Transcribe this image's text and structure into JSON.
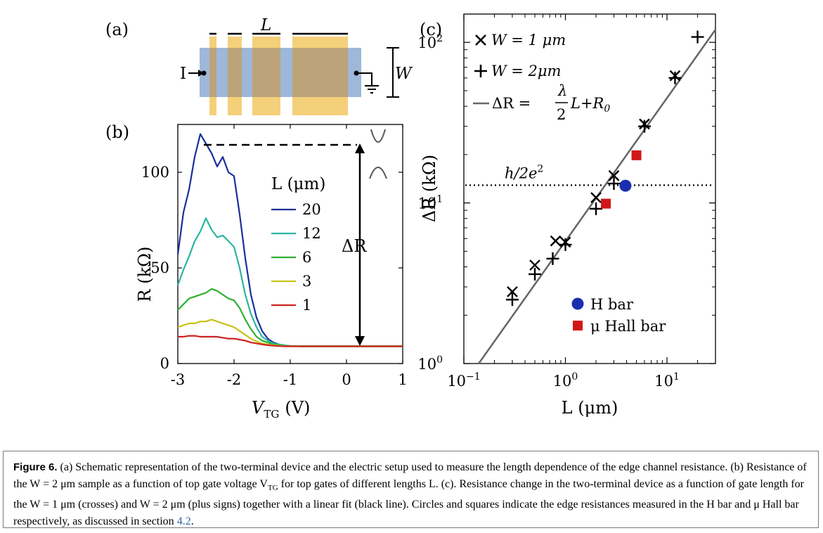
{
  "panel_a": {
    "label": "(a)",
    "current_label": "I",
    "length_label": "L",
    "width_label": "W",
    "colors": {
      "channel": "#9db8d8",
      "gate": "#f5d07a",
      "gate_overlap": "#bca37a"
    }
  },
  "panel_b": {
    "label": "(b)",
    "delta_label": "ΔR",
    "legend_title": "L (μm)",
    "xlabel": "V",
    "xlabel_sub": "TG",
    "xlabel_unit": "(V)",
    "ylabel": "R (kΩ)",
    "xticks": [
      "-3",
      "-2",
      "-1",
      "0",
      "1"
    ],
    "yticks": [
      "0",
      "50",
      "100"
    ]
  },
  "panel_c": {
    "label": "(c)",
    "legend": {
      "w1": "W = 1 μm",
      "w2": "W = 2μm",
      "fit_prefix": "ΔR =",
      "fit_frac_num": "λ",
      "fit_frac_den": "2",
      "fit_suffix": "L+R",
      "fit_sub": "0",
      "h_bar": "H bar",
      "mu_hall": "μ Hall bar"
    },
    "h2e2": "h/2e",
    "h2e2_sup": "2",
    "xlabel": "L (μm)",
    "ylabel": "ΔR (kΩ)",
    "xticks": [
      {
        "base": "10",
        "exp": "−1"
      },
      {
        "base": "10",
        "exp": "0"
      },
      {
        "base": "10",
        "exp": "1"
      }
    ],
    "yticks": [
      {
        "base": "10",
        "exp": "0"
      },
      {
        "base": "10",
        "exp": "1"
      },
      {
        "base": "10",
        "exp": "2"
      }
    ]
  },
  "chart_data": [
    {
      "type": "line",
      "title": "",
      "xlabel": "V_TG (V)",
      "ylabel": "R (kΩ)",
      "xlim": [
        -3,
        1
      ],
      "ylim": [
        0,
        125
      ],
      "grid": false,
      "legend_position": "center-right",
      "legend_title": "L (μm)",
      "x": [
        -3.0,
        -2.9,
        -2.8,
        -2.7,
        -2.6,
        -2.5,
        -2.4,
        -2.3,
        -2.2,
        -2.1,
        -2.0,
        -1.9,
        -1.8,
        -1.7,
        -1.6,
        -1.5,
        -1.4,
        -1.3,
        -1.2,
        -1.1,
        -1.0,
        -0.8,
        -0.5,
        0.0,
        0.5,
        1.0
      ],
      "series": [
        {
          "name": "20",
          "color": "#1a2f9c",
          "values": [
            57,
            79,
            91,
            108,
            120,
            115,
            110,
            103,
            108,
            100,
            98,
            78,
            55,
            36,
            24,
            17,
            13,
            11,
            10,
            9.5,
            9.2,
            9,
            9,
            9,
            9,
            9
          ]
        },
        {
          "name": "12",
          "color": "#2ab5a0",
          "values": [
            41,
            49,
            56,
            64,
            69,
            76,
            70,
            66,
            67,
            64,
            61,
            50,
            36,
            26,
            19,
            14,
            12,
            10.5,
            10,
            9.5,
            9.2,
            9,
            9,
            9,
            9,
            9
          ]
        },
        {
          "name": "6",
          "color": "#2eaf2e",
          "values": [
            28,
            31,
            34,
            35,
            36,
            37,
            39,
            38,
            36,
            34,
            33,
            29,
            23,
            18,
            14,
            12,
            11,
            10,
            9.6,
            9.3,
            9.1,
            9,
            9,
            9,
            9,
            9
          ]
        },
        {
          "name": "3",
          "color": "#c8c21a",
          "values": [
            19,
            20,
            21,
            21,
            22,
            22,
            23,
            22,
            21,
            20,
            19,
            17,
            15,
            13,
            11.5,
            10.5,
            10,
            9.6,
            9.3,
            9.1,
            9,
            9,
            9,
            9,
            9,
            9
          ]
        },
        {
          "name": "1",
          "color": "#cc2222",
          "values": [
            14,
            14,
            14.5,
            14.5,
            14,
            14,
            14,
            14,
            13.5,
            13,
            13,
            12.5,
            12,
            11,
            10.5,
            10,
            9.6,
            9.3,
            9.1,
            9,
            9,
            9,
            9,
            9,
            9,
            9
          ]
        }
      ],
      "annotations": [
        "ΔR"
      ]
    },
    {
      "type": "scatter",
      "title": "",
      "xlabel": "L (μm)",
      "ylabel": "ΔR (kΩ)",
      "xscale": "log",
      "yscale": "log",
      "xlim": [
        0.1,
        30
      ],
      "ylim": [
        1,
        150
      ],
      "grid": false,
      "legend_position": "top-left",
      "reference_line": {
        "label": "h/2e²",
        "y": 12.9
      },
      "series": [
        {
          "name": "W = 1 μm",
          "marker": "x",
          "points": [
            [
              0.3,
              2.8
            ],
            [
              0.5,
              4.1
            ],
            [
              0.8,
              5.8
            ],
            [
              1.0,
              5.7
            ],
            [
              2.0,
              10.8
            ],
            [
              3.0,
              14.8
            ],
            [
              6.0,
              31
            ],
            [
              12.0,
              62
            ]
          ]
        },
        {
          "name": "W = 2μm",
          "marker": "+",
          "points": [
            [
              0.3,
              2.5
            ],
            [
              0.5,
              3.6
            ],
            [
              0.75,
              4.5
            ],
            [
              1.0,
              5.5
            ],
            [
              2.0,
              9.2
            ],
            [
              3.0,
              13.2
            ],
            [
              6.0,
              30
            ],
            [
              12.0,
              60
            ],
            [
              20.0,
              108
            ]
          ]
        },
        {
          "name": "ΔR = λ/2 L+R0",
          "marker": "line",
          "points": [
            [
              0.14,
              1.0
            ],
            [
              30,
              120
            ]
          ]
        },
        {
          "name": "H bar",
          "marker": "circle",
          "color": "#1a2fb0",
          "points": [
            [
              3.9,
              12.8
            ]
          ]
        },
        {
          "name": "μ Hall bar",
          "marker": "square",
          "color": "#d01818",
          "points": [
            [
              2.5,
              9.9
            ],
            [
              5.0,
              19.8
            ]
          ]
        }
      ]
    }
  ],
  "caption": {
    "head": "Figure 6.",
    "body": " (a) Schematic representation of the two-terminal device and the electric setup used to measure the length dependence of the edge channel resistance. (b) Resistance of the W = 2 μm sample as a function of top gate voltage V",
    "body_sub": "TG",
    "body2": " for top gates of different lengths L. (c). Resistance change in the two-terminal device as a function of gate length for the W = 1 μm (crosses) and W = 2 μm (plus signs) together with a linear fit (black line). Circles and squares indicate the edge resistances measured in the H bar and μ Hall bar respectively, as discussed in section ",
    "link": "4.2",
    "end": "."
  }
}
